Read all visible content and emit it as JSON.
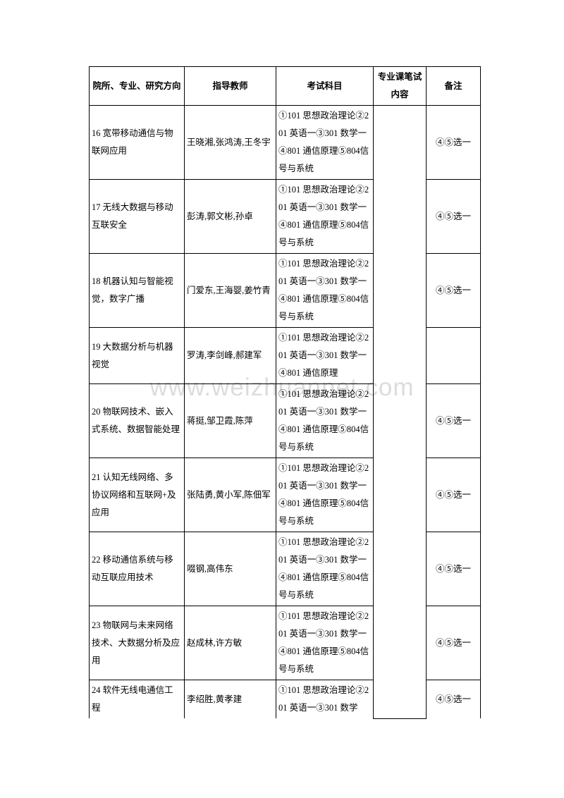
{
  "watermark": "www.weizhuannet.com",
  "headers": {
    "col1": "院所、专业、研究方向",
    "col2": "指导教师",
    "col3": "考试科目",
    "col4": "专业课笔试内容",
    "col5": "备注"
  },
  "rows": [
    {
      "topic": "16 宽带移动通信与物联网应用",
      "teachers": "王晓湘,张鸿涛,王冬宇",
      "exam": "①101 思想政治理论②201 英语一③301 数学一④801 通信原理⑤804信号与系统",
      "note": "④⑤选一"
    },
    {
      "topic": "17 无线大数据与移动互联安全",
      "teachers": "彭涛,郭文彬,孙卓",
      "exam": "①101 思想政治理论②201 英语一③301 数学一④801 通信原理⑤804信号与系统",
      "note": "④⑤选一"
    },
    {
      "topic": "18 机器认知与智能视觉，数字广播",
      "teachers": "门爱东,王海婴,姜竹青",
      "exam": "①101 思想政治理论②201 英语一③301 数学一④801 通信原理⑤804信号与系统",
      "note": "④⑤选一"
    },
    {
      "topic": "19 大数据分析与机器视觉",
      "teachers": "罗涛,李剑峰,郝建军",
      "exam": "①101 思想政治理论②201 英语一③301 数学一④801 通信原理",
      "note": ""
    },
    {
      "topic": "20 物联网技术、嵌入式系统、数据智能处理",
      "teachers": "蒋挺,邹卫霞,陈萍",
      "exam": "①101 思想政治理论②201 英语一③301 数学一④801 通信原理⑤804信号与系统",
      "note": "④⑤选一"
    },
    {
      "topic": "21 认知无线网络、多协议网络和互联网+及应用",
      "teachers": "张陆勇,黄小军,陈佃军",
      "exam": "①101 思想政治理论②201 英语一③301 数学一④801 通信原理⑤804信号与系统",
      "note": "④⑤选一"
    },
    {
      "topic": "22 移动通信系统与移动互联应用技术",
      "teachers": "啜钢,高伟东",
      "exam": "①101 思想政治理论②201 英语一③301 数学一④801 通信原理⑤804信号与系统",
      "note": "④⑤选一"
    },
    {
      "topic": "23 物联网与未来网络技术、大数据分析及应用",
      "teachers": "赵成林,许方敏",
      "exam": "①101 思想政治理论②201 英语一③301 数学一④801 通信原理⑤804信号与系统",
      "note": "④⑤选一"
    },
    {
      "topic": "24 软件无线电通信工程",
      "teachers": "李绍胜,黄孝建",
      "exam": "①101 思想政治理论②201 英语一③301 数学",
      "note": "④⑤选一"
    }
  ]
}
